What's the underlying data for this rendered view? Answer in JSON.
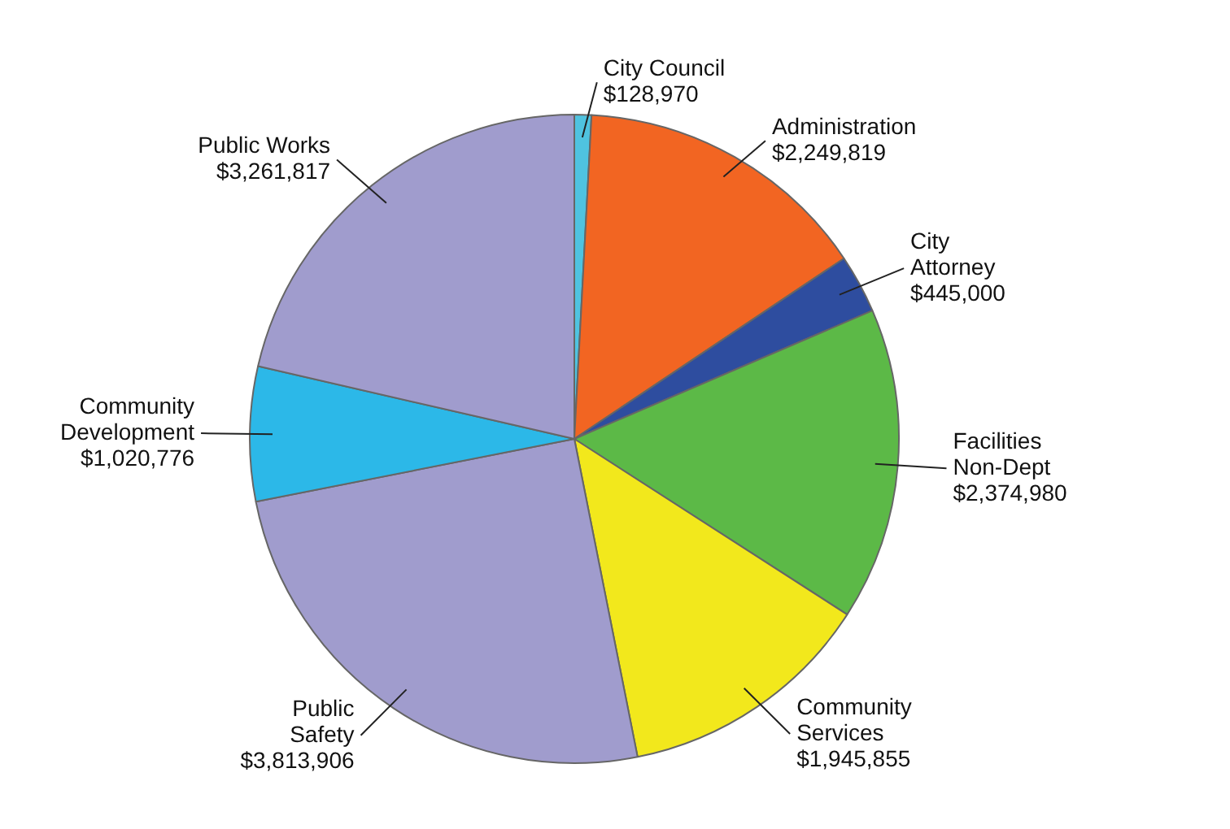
{
  "chart_data": {
    "type": "pie",
    "categories": [
      "City Council",
      "Administration",
      "City Attorney",
      "Facilities Non-Dept",
      "Community Services",
      "Public Safety",
      "Community Development",
      "Public Works"
    ],
    "values": [
      128970,
      2249819,
      445000,
      2374980,
      1945855,
      3813906,
      1020776,
      3261817
    ],
    "value_labels": [
      "$128,970",
      "$2,249,819",
      "$445,000",
      "$2,374,980",
      "$1,945,855",
      "$3,813,906",
      "$1,020,776",
      "$3,261,817"
    ],
    "colors": [
      "#4fc3e0",
      "#f26522",
      "#2e4d9f",
      "#5cb947",
      "#f2e81c",
      "#a09ccd",
      "#2cb8e8",
      "#a09ccd"
    ]
  }
}
